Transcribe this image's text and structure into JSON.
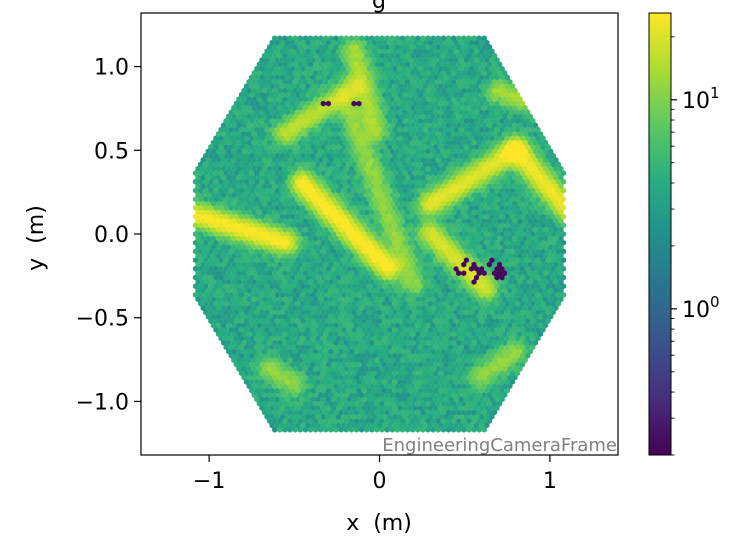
{
  "chart_data": {
    "type": "heatmap",
    "subtype": "hexagonal camera pixel map",
    "title": "g",
    "xlabel": "x  (m)",
    "ylabel": "y  (m)",
    "xlim": [
      -1.4,
      1.4
    ],
    "ylim": [
      -1.32,
      1.32
    ],
    "x_ticks": [
      -1,
      0,
      1
    ],
    "x_tick_labels": [
      "−1",
      "0",
      "1"
    ],
    "y_ticks": [
      1.0,
      0.5,
      0.0,
      -0.5,
      -1.0
    ],
    "y_tick_labels": [
      "1.0",
      "0.5",
      "0.0",
      "−0.5",
      "−1.0"
    ],
    "frame_annotation": "EngineeringCameraFrame",
    "camera_radius_m": 1.17,
    "colormap": "viridis",
    "color_scale": "log",
    "color_range": [
      0.2,
      26
    ],
    "colorbar_tick_labels": [
      {
        "value": 10,
        "base": "10",
        "exp": "1"
      },
      {
        "value": 1,
        "base": "10",
        "exp": "0"
      }
    ],
    "background_level": 3,
    "bright_streaks": [
      {
        "x0": -1.1,
        "y0": 0.12,
        "x1": -0.55,
        "y1": -0.05,
        "peak": 22
      },
      {
        "x0": -0.45,
        "y0": 0.3,
        "x1": 0.05,
        "y1": -0.2,
        "peak": 24
      },
      {
        "x0": 0.3,
        "y0": 0.18,
        "x1": 0.8,
        "y1": 0.5,
        "peak": 18
      },
      {
        "x0": 0.8,
        "y0": 0.5,
        "x1": 1.1,
        "y1": 0.15,
        "peak": 20
      },
      {
        "x0": 0.3,
        "y0": 0.0,
        "x1": 0.62,
        "y1": -0.32,
        "peak": 16
      },
      {
        "x0": -0.55,
        "y0": 0.6,
        "x1": -0.15,
        "y1": 0.88,
        "peak": 12
      },
      {
        "x0": -0.15,
        "y0": 1.1,
        "x1": -0.02,
        "y1": 0.62,
        "peak": 10
      },
      {
        "x0": -0.2,
        "y0": 0.8,
        "x1": 0.2,
        "y1": -0.3,
        "peak": 8
      },
      {
        "x0": 0.7,
        "y0": 0.85,
        "x1": 0.85,
        "y1": 0.8,
        "peak": 10
      },
      {
        "x0": -0.65,
        "y0": -0.8,
        "x1": -0.5,
        "y1": -0.9,
        "peak": 8
      },
      {
        "x0": 0.6,
        "y0": -0.85,
        "x1": 0.8,
        "y1": -0.7,
        "peak": 8
      }
    ],
    "dead_pixels": [
      [
        -0.31,
        0.78
      ],
      [
        -0.13,
        0.78
      ],
      [
        0.45,
        -0.2
      ],
      [
        0.5,
        -0.17
      ],
      [
        0.55,
        -0.2
      ],
      [
        0.6,
        -0.22
      ],
      [
        0.65,
        -0.17
      ],
      [
        0.7,
        -0.2
      ],
      [
        0.48,
        -0.23
      ],
      [
        0.58,
        -0.25
      ],
      [
        0.68,
        -0.25
      ],
      [
        0.72,
        -0.24
      ],
      [
        0.55,
        -0.28
      ]
    ],
    "dead_value": 0.22
  }
}
